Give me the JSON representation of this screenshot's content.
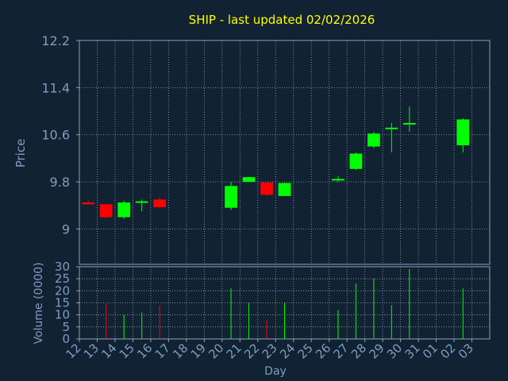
{
  "colors": {
    "background": "#112233",
    "plot_background": "#112233",
    "axis": "#8da0b8",
    "grid": "#9aa6b4",
    "title": "#ffff00",
    "label": "#7f9ec0",
    "up": "#00ff00",
    "down": "#ff0000"
  },
  "chart_data": [
    {
      "type": "candlestick",
      "title": "SHIP - last updated 02/02/2026",
      "ylabel": "Price",
      "ylim": [
        8.4,
        12.2
      ],
      "yticks": [
        9,
        9.8,
        10.6,
        11.4,
        12.2
      ],
      "grid": true,
      "candles": [
        {
          "x": "12",
          "open": 9.45,
          "high": 9.48,
          "low": 9.42,
          "close": 9.42
        },
        {
          "x": "13",
          "open": 9.42,
          "high": 9.42,
          "low": 9.18,
          "close": 9.2
        },
        {
          "x": "14",
          "open": 9.2,
          "high": 9.48,
          "low": 9.17,
          "close": 9.45
        },
        {
          "x": "15",
          "open": 9.46,
          "high": 9.5,
          "low": 9.3,
          "close": 9.47
        },
        {
          "x": "16",
          "open": 9.5,
          "high": 9.54,
          "low": 9.36,
          "close": 9.37
        },
        {
          "x": "20",
          "open": 9.36,
          "high": 9.8,
          "low": 9.32,
          "close": 9.73
        },
        {
          "x": "21",
          "open": 9.8,
          "high": 9.88,
          "low": 9.8,
          "close": 9.88
        },
        {
          "x": "22",
          "open": 9.79,
          "high": 9.79,
          "low": 9.56,
          "close": 9.58
        },
        {
          "x": "23",
          "open": 9.56,
          "high": 9.79,
          "low": 9.56,
          "close": 9.78
        },
        {
          "x": "26",
          "open": 9.83,
          "high": 9.9,
          "low": 9.8,
          "close": 9.85
        },
        {
          "x": "27",
          "open": 10.02,
          "high": 10.3,
          "low": 10.0,
          "close": 10.28
        },
        {
          "x": "28",
          "open": 10.4,
          "high": 10.65,
          "low": 10.37,
          "close": 10.62
        },
        {
          "x": "29",
          "open": 10.7,
          "high": 10.8,
          "low": 10.3,
          "close": 10.72
        },
        {
          "x": "30",
          "open": 10.78,
          "high": 11.08,
          "low": 10.65,
          "close": 10.8
        },
        {
          "x": "02",
          "open": 10.42,
          "high": 10.88,
          "low": 10.3,
          "close": 10.86
        }
      ]
    },
    {
      "type": "bar",
      "xlabel": "Day",
      "ylabel": "Volume (0000)",
      "ylim": [
        0,
        30
      ],
      "yticks": [
        0,
        5,
        10,
        15,
        20,
        25,
        30
      ],
      "categories": [
        "12",
        "13",
        "14",
        "15",
        "16",
        "17",
        "18",
        "19",
        "20",
        "21",
        "22",
        "23",
        "24",
        "25",
        "26",
        "27",
        "28",
        "29",
        "30",
        "31",
        "01",
        "02",
        "03"
      ],
      "volumes": [
        {
          "x": "13",
          "value": 15,
          "direction": "down"
        },
        {
          "x": "14",
          "value": 10,
          "direction": "up"
        },
        {
          "x": "15",
          "value": 11,
          "direction": "up"
        },
        {
          "x": "16",
          "value": 14,
          "direction": "down"
        },
        {
          "x": "20",
          "value": 21,
          "direction": "up"
        },
        {
          "x": "21",
          "value": 15,
          "direction": "up"
        },
        {
          "x": "22",
          "value": 8,
          "direction": "down"
        },
        {
          "x": "23",
          "value": 15,
          "direction": "up"
        },
        {
          "x": "26",
          "value": 12,
          "direction": "up"
        },
        {
          "x": "27",
          "value": 23,
          "direction": "up"
        },
        {
          "x": "28",
          "value": 25,
          "direction": "up"
        },
        {
          "x": "29",
          "value": 14,
          "direction": "up"
        },
        {
          "x": "30",
          "value": 29,
          "direction": "up"
        },
        {
          "x": "02",
          "value": 21,
          "direction": "up"
        }
      ]
    }
  ]
}
